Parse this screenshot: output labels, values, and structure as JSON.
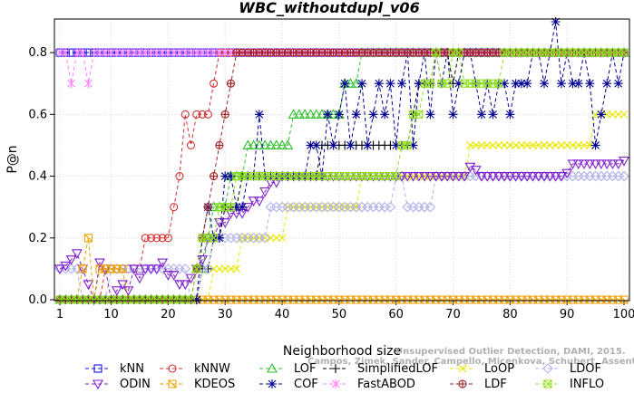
{
  "chart_data": {
    "type": "line",
    "title": "WBC_withoutdupl_v06",
    "xlabel": "Neighborhood size",
    "ylabel": "P@n",
    "xlim": [
      1,
      100
    ],
    "ylim": [
      0,
      0.9
    ],
    "xticks": [
      1,
      10,
      20,
      30,
      40,
      50,
      60,
      70,
      80,
      90,
      100
    ],
    "yticks": [
      0.0,
      0.2,
      0.4,
      0.6,
      0.8
    ],
    "ytick_labels": [
      "0.0",
      "0.2",
      "0.4",
      "0.6",
      "0.8"
    ],
    "grid": true,
    "legend_position": "bottom",
    "watermark_line1": "Unsupervised Outlier Detection, DAMI, 2015.",
    "watermark_line2": "Campos, Zimek, Sander, Campello, Micenkova, Schubert, Assent, Houle",
    "series": [
      {
        "name": "kNN",
        "color": "#1010ee",
        "marker": "square",
        "points": [
          [
            1,
            0.8
          ],
          [
            100,
            0.8
          ]
        ]
      },
      {
        "name": "kNNW",
        "color": "#d03030",
        "marker": "circle",
        "points": [
          [
            1,
            0.0
          ],
          [
            9,
            0.1
          ],
          [
            15,
            0.1
          ],
          [
            16,
            0.2
          ],
          [
            20,
            0.2
          ],
          [
            21,
            0.3
          ],
          [
            22,
            0.4
          ],
          [
            23,
            0.6
          ],
          [
            24,
            0.5
          ],
          [
            25,
            0.6
          ],
          [
            28,
            0.7
          ],
          [
            29,
            0.8
          ],
          [
            100,
            0.8
          ]
        ]
      },
      {
        "name": "LOF",
        "color": "#30c030",
        "marker": "triangle-up",
        "points": [
          [
            1,
            0.0
          ],
          [
            24,
            0.0
          ],
          [
            25,
            0.1
          ],
          [
            26,
            0.1
          ],
          [
            27,
            0.2
          ],
          [
            28,
            0.3
          ],
          [
            30,
            0.3
          ],
          [
            31,
            0.4
          ],
          [
            33,
            0.4
          ],
          [
            34,
            0.5
          ],
          [
            40,
            0.5
          ],
          [
            41,
            0.5
          ],
          [
            42,
            0.6
          ],
          [
            50,
            0.6
          ],
          [
            51,
            0.7
          ],
          [
            53,
            0.7
          ],
          [
            54,
            0.8
          ],
          [
            100,
            0.8
          ]
        ]
      },
      {
        "name": "SimplifiedLOF",
        "color": "#000000",
        "marker": "plus",
        "points": [
          [
            1,
            0.0
          ],
          [
            25,
            0.0
          ],
          [
            26,
            0.1
          ],
          [
            27,
            0.1
          ],
          [
            28,
            0.2
          ],
          [
            29,
            0.2
          ],
          [
            30,
            0.3
          ],
          [
            32,
            0.3
          ],
          [
            33,
            0.4
          ],
          [
            46,
            0.4
          ],
          [
            47,
            0.5
          ],
          [
            62,
            0.5
          ],
          [
            63,
            0.6
          ],
          [
            64,
            0.7
          ],
          [
            66,
            0.7
          ],
          [
            67,
            0.8
          ],
          [
            70,
            0.7
          ],
          [
            71,
            0.8
          ],
          [
            100,
            0.8
          ]
        ]
      },
      {
        "name": "LoOP",
        "color": "#e8e800",
        "marker": "x",
        "points": [
          [
            1,
            0.0
          ],
          [
            27,
            0.0
          ],
          [
            28,
            0.1
          ],
          [
            32,
            0.1
          ],
          [
            33,
            0.2
          ],
          [
            40,
            0.2
          ],
          [
            41,
            0.3
          ],
          [
            53,
            0.3
          ],
          [
            54,
            0.4
          ],
          [
            72,
            0.4
          ],
          [
            73,
            0.5
          ],
          [
            94,
            0.5
          ],
          [
            95,
            0.6
          ],
          [
            100,
            0.6
          ]
        ]
      },
      {
        "name": "LDOF",
        "color": "#b0b0ee",
        "marker": "diamond",
        "points": [
          [
            1,
            0.1
          ],
          [
            3,
            0.1
          ],
          [
            5,
            0.0
          ],
          [
            9,
            0.0
          ],
          [
            10,
            0.1
          ],
          [
            22,
            0.1
          ],
          [
            24,
            0.0
          ],
          [
            26,
            0.1
          ],
          [
            28,
            0.2
          ],
          [
            34,
            0.2
          ],
          [
            36,
            0.2
          ],
          [
            38,
            0.3
          ],
          [
            44,
            0.3
          ],
          [
            46,
            0.3
          ],
          [
            47,
            0.3
          ],
          [
            55,
            0.3
          ],
          [
            58,
            0.3
          ],
          [
            60,
            0.4
          ],
          [
            62,
            0.3
          ],
          [
            66,
            0.3
          ],
          [
            67,
            0.4
          ],
          [
            100,
            0.4
          ]
        ]
      },
      {
        "name": "ODIN",
        "color": "#8020cc",
        "marker": "triangle-down",
        "points": [
          [
            1,
            0.1
          ],
          [
            2,
            0.11
          ],
          [
            3,
            0.13
          ],
          [
            4,
            0.15
          ],
          [
            5,
            0.1
          ],
          [
            6,
            0.05
          ],
          [
            7,
            0.0
          ],
          [
            8,
            0.12
          ],
          [
            9,
            0.1
          ],
          [
            10,
            0.0
          ],
          [
            11,
            0.03
          ],
          [
            12,
            0.05
          ],
          [
            13,
            0.03
          ],
          [
            14,
            0.1
          ],
          [
            15,
            0.07
          ],
          [
            16,
            0.1
          ],
          [
            18,
            0.1
          ],
          [
            19,
            0.12
          ],
          [
            20,
            0.08
          ],
          [
            22,
            0.05
          ],
          [
            24,
            0.07
          ],
          [
            25,
            0.1
          ],
          [
            26,
            0.13
          ],
          [
            27,
            0.2
          ],
          [
            29,
            0.25
          ],
          [
            31,
            0.28
          ],
          [
            34,
            0.3
          ],
          [
            35,
            0.32
          ],
          [
            37,
            0.35
          ],
          [
            38,
            0.38
          ],
          [
            40,
            0.4
          ],
          [
            72,
            0.4
          ],
          [
            73,
            0.43
          ],
          [
            74,
            0.42
          ],
          [
            75,
            0.4
          ],
          [
            90,
            0.41
          ],
          [
            91,
            0.44
          ],
          [
            98,
            0.44
          ],
          [
            100,
            0.45
          ]
        ]
      },
      {
        "name": "KDEOS",
        "color": "#eea000",
        "marker": "square-x",
        "points": [
          [
            1,
            0.0
          ],
          [
            4,
            0.0
          ],
          [
            5,
            0.1
          ],
          [
            6,
            0.2
          ],
          [
            7,
            0.0
          ],
          [
            8,
            0.1
          ],
          [
            12,
            0.1
          ],
          [
            13,
            0.0
          ],
          [
            100,
            0.0
          ]
        ]
      },
      {
        "name": "COF",
        "color": "#000090",
        "marker": "star",
        "points": [
          [
            1,
            0.0
          ],
          [
            25,
            0.0
          ],
          [
            26,
            0.2
          ],
          [
            27,
            0.3
          ],
          [
            28,
            0.2
          ],
          [
            30,
            0.4
          ],
          [
            32,
            0.3
          ],
          [
            34,
            0.4
          ],
          [
            36,
            0.6
          ],
          [
            37,
            0.4
          ],
          [
            44,
            0.4
          ],
          [
            45,
            0.5
          ],
          [
            47,
            0.4
          ],
          [
            48,
            0.6
          ],
          [
            49,
            0.5
          ],
          [
            50,
            0.6
          ],
          [
            51,
            0.7
          ],
          [
            52,
            0.5
          ],
          [
            53,
            0.6
          ],
          [
            54,
            0.7
          ],
          [
            55,
            0.5
          ],
          [
            56,
            0.6
          ],
          [
            57,
            0.7
          ],
          [
            58,
            0.6
          ],
          [
            59,
            0.7
          ],
          [
            60,
            0.5
          ],
          [
            61,
            0.7
          ],
          [
            62,
            0.8
          ],
          [
            63,
            0.5
          ],
          [
            64,
            0.7
          ],
          [
            65,
            0.8
          ],
          [
            66,
            0.6
          ],
          [
            67,
            0.8
          ],
          [
            68,
            0.7
          ],
          [
            69,
            0.8
          ],
          [
            70,
            0.6
          ],
          [
            71,
            0.7
          ],
          [
            72,
            0.8
          ],
          [
            74,
            0.7
          ],
          [
            75,
            0.6
          ],
          [
            76,
            0.7
          ],
          [
            77,
            0.6
          ],
          [
            78,
            0.7
          ],
          [
            79,
            0.7
          ],
          [
            80,
            0.6
          ],
          [
            81,
            0.7
          ],
          [
            82,
            0.7
          ],
          [
            84,
            0.8
          ],
          [
            85,
            0.8
          ],
          [
            86,
            0.7
          ],
          [
            87,
            0.8
          ],
          [
            88,
            0.9
          ],
          [
            89,
            0.7
          ],
          [
            90,
            0.8
          ],
          [
            91,
            0.7
          ],
          [
            92,
            0.7
          ],
          [
            93,
            0.8
          ],
          [
            94,
            0.7
          ],
          [
            95,
            0.5
          ],
          [
            96,
            0.6
          ],
          [
            97,
            0.7
          ],
          [
            98,
            0.8
          ],
          [
            99,
            0.7
          ],
          [
            100,
            0.8
          ]
        ]
      },
      {
        "name": "FastABOD",
        "color": "#ff80ff",
        "marker": "asterisk",
        "points": [
          [
            1,
            0.8
          ],
          [
            2,
            0.8
          ],
          [
            3,
            0.7
          ],
          [
            4,
            0.8
          ],
          [
            5,
            0.8
          ],
          [
            6,
            0.7
          ],
          [
            7,
            0.8
          ],
          [
            100,
            0.8
          ]
        ]
      },
      {
        "name": "LDF",
        "color": "#a02020",
        "marker": "circle-plus",
        "points": [
          [
            1,
            0.0
          ],
          [
            24,
            0.0
          ],
          [
            25,
            0.1
          ],
          [
            26,
            0.2
          ],
          [
            27,
            0.3
          ],
          [
            28,
            0.4
          ],
          [
            29,
            0.5
          ],
          [
            30,
            0.6
          ],
          [
            31,
            0.7
          ],
          [
            32,
            0.8
          ],
          [
            100,
            0.8
          ]
        ]
      },
      {
        "name": "INFLO",
        "color": "#90e020",
        "marker": "box-x",
        "points": [
          [
            1,
            0.0
          ],
          [
            24,
            0.0
          ],
          [
            25,
            0.1
          ],
          [
            26,
            0.2
          ],
          [
            28,
            0.2
          ],
          [
            29,
            0.3
          ],
          [
            31,
            0.3
          ],
          [
            32,
            0.4
          ],
          [
            60,
            0.4
          ],
          [
            61,
            0.5
          ],
          [
            63,
            0.6
          ],
          [
            64,
            0.6
          ],
          [
            65,
            0.7
          ],
          [
            66,
            0.7
          ],
          [
            67,
            0.8
          ],
          [
            68,
            0.7
          ],
          [
            69,
            0.7
          ],
          [
            70,
            0.8
          ],
          [
            71,
            0.8
          ],
          [
            72,
            0.7
          ],
          [
            78,
            0.7
          ],
          [
            79,
            0.8
          ],
          [
            100,
            0.8
          ]
        ]
      }
    ]
  }
}
